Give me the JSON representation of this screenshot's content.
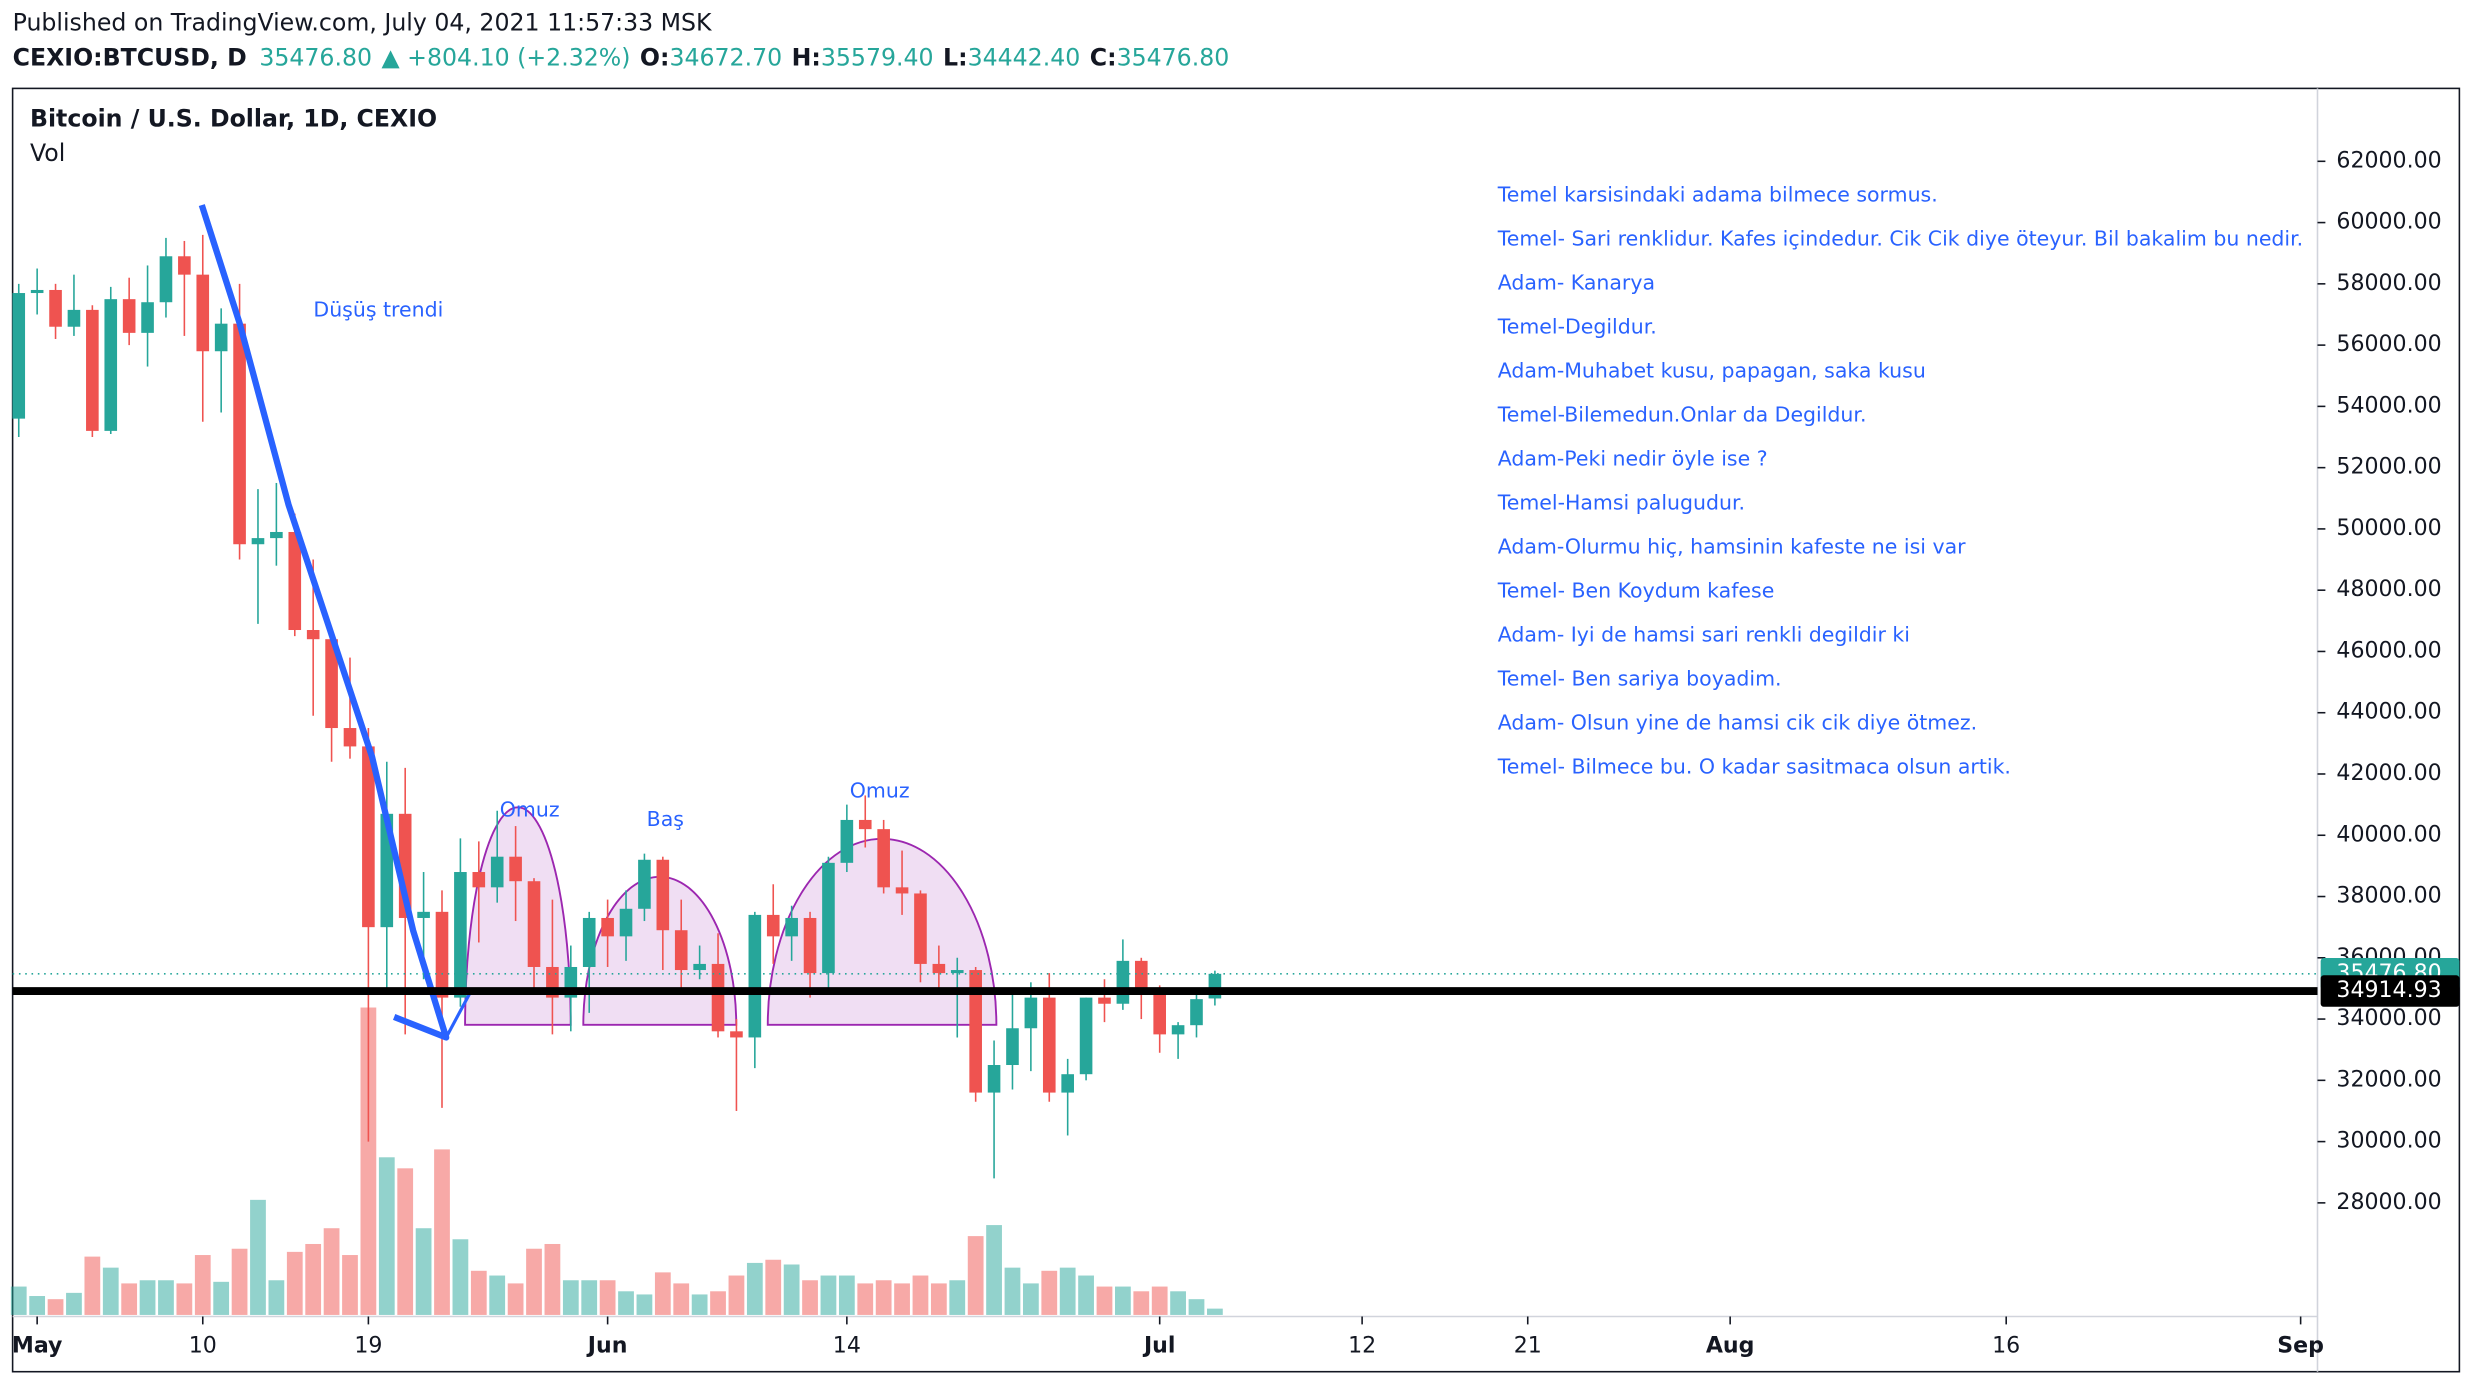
{
  "chart_data": {
    "type": "candlestick",
    "header": {
      "published": "Published on TradingView.com, July 04, 2021 11:57:33 MSK",
      "symbol": "CEXIO:BTCUSD, D",
      "last": "35476.80",
      "change": "▲ +804.10 (+2.32%)",
      "ohlc": [
        {
          "key": "O:",
          "value": "34672.70"
        },
        {
          "key": "H:",
          "value": "35579.40"
        },
        {
          "key": "L:",
          "value": "34442.40"
        },
        {
          "key": "C:",
          "value": "35476.80"
        }
      ]
    },
    "legend": {
      "title": "Bitcoin / U.S. Dollar, 1D, CEXIO",
      "volume": "Vol"
    },
    "up_color": "#26a69a",
    "down_color": "#ef5350",
    "x": [
      "2021-04-30",
      "2021-05-01",
      "2021-05-02",
      "2021-05-03",
      "2021-05-04",
      "2021-05-05",
      "2021-05-06",
      "2021-05-07",
      "2021-05-08",
      "2021-05-09",
      "2021-05-10",
      "2021-05-11",
      "2021-05-12",
      "2021-05-13",
      "2021-05-14",
      "2021-05-15",
      "2021-05-16",
      "2021-05-17",
      "2021-05-18",
      "2021-05-19",
      "2021-05-20",
      "2021-05-21",
      "2021-05-22",
      "2021-05-23",
      "2021-05-24",
      "2021-05-25",
      "2021-05-26",
      "2021-05-27",
      "2021-05-28",
      "2021-05-29",
      "2021-05-30",
      "2021-05-31",
      "2021-06-01",
      "2021-06-02",
      "2021-06-03",
      "2021-06-04",
      "2021-06-05",
      "2021-06-06",
      "2021-06-07",
      "2021-06-08",
      "2021-06-09",
      "2021-06-10",
      "2021-06-11",
      "2021-06-12",
      "2021-06-13",
      "2021-06-14",
      "2021-06-15",
      "2021-06-16",
      "2021-06-17",
      "2021-06-18",
      "2021-06-19",
      "2021-06-20",
      "2021-06-21",
      "2021-06-22",
      "2021-06-23",
      "2021-06-24",
      "2021-06-25",
      "2021-06-26",
      "2021-06-27",
      "2021-06-28",
      "2021-06-29",
      "2021-06-30",
      "2021-07-01",
      "2021-07-02",
      "2021-07-03",
      "2021-07-04"
    ],
    "open": [
      53600,
      57700,
      57800,
      56600,
      57150,
      53200,
      57500,
      56400,
      57400,
      58900,
      58300,
      55800,
      56700,
      49500,
      49700,
      49900,
      46700,
      46400,
      43500,
      42900,
      37000,
      40700,
      37300,
      37500,
      34700,
      38800,
      38300,
      39300,
      38500,
      35700,
      34700,
      35700,
      37300,
      36700,
      37600,
      39200,
      36900,
      35600,
      35800,
      33600,
      33400,
      37400,
      36700,
      37300,
      35500,
      39100,
      40500,
      40200,
      38300,
      38100,
      35800,
      35500,
      35600,
      31600,
      32500,
      33700,
      34700,
      31600,
      32200,
      34700,
      34500,
      35900,
      35000,
      33500,
      33800,
      34672.7
    ],
    "high": [
      58000,
      58500,
      58000,
      58300,
      57300,
      57900,
      58200,
      58600,
      59500,
      59400,
      59600,
      57200,
      58000,
      51300,
      51500,
      50500,
      49000,
      46600,
      45800,
      43500,
      42400,
      42200,
      38800,
      38200,
      39900,
      39800,
      40800,
      40300,
      38600,
      37900,
      36400,
      37500,
      37900,
      38200,
      39400,
      39300,
      37900,
      36400,
      36800,
      34000,
      37500,
      38400,
      37700,
      37500,
      39300,
      41000,
      41300,
      40500,
      39500,
      38200,
      36400,
      36000,
      35700,
      33300,
      34800,
      35200,
      35500,
      32700,
      34700,
      35300,
      36600,
      36000,
      35100,
      33900,
      34900,
      35579.4
    ],
    "low": [
      53000,
      57000,
      56200,
      56300,
      53000,
      53100,
      56000,
      55300,
      56900,
      56300,
      53500,
      53800,
      49000,
      46900,
      48800,
      46500,
      43900,
      42400,
      42500,
      30000,
      34800,
      33500,
      35300,
      31100,
      34400,
      36500,
      37800,
      37200,
      34800,
      33500,
      33600,
      34200,
      35700,
      35900,
      37200,
      35600,
      34900,
      35300,
      33400,
      31000,
      32400,
      35800,
      35900,
      34700,
      34800,
      38800,
      39600,
      38100,
      37400,
      35200,
      34800,
      33400,
      31300,
      28800,
      31700,
      32300,
      31300,
      30200,
      32000,
      33900,
      34300,
      34000,
      32900,
      32700,
      33400,
      34442.4
    ],
    "close": [
      57700,
      57800,
      56600,
      57150,
      53200,
      57500,
      56400,
      57400,
      58900,
      58300,
      55800,
      56700,
      49500,
      49700,
      49900,
      46700,
      46400,
      43500,
      42900,
      37000,
      40700,
      37300,
      37500,
      34700,
      38800,
      38300,
      39300,
      38500,
      35700,
      34700,
      35700,
      37300,
      36700,
      37600,
      39200,
      36900,
      35600,
      35800,
      33600,
      33400,
      37400,
      36700,
      37300,
      35500,
      39100,
      40500,
      40200,
      38300,
      38100,
      35800,
      35500,
      35600,
      31600,
      32500,
      33700,
      34700,
      31600,
      32200,
      34700,
      34500,
      35900,
      35000,
      33500,
      33800,
      34650,
      35476.8
    ],
    "volume": [
      18,
      12,
      10,
      14,
      37,
      30,
      20,
      22,
      22,
      20,
      38,
      21,
      42,
      73,
      22,
      40,
      45,
      55,
      38,
      195,
      100,
      93,
      55,
      105,
      48,
      28,
      25,
      20,
      42,
      45,
      22,
      22,
      22,
      15,
      13,
      27,
      20,
      13,
      15,
      25,
      33,
      35,
      32,
      22,
      25,
      25,
      20,
      22,
      20,
      25,
      20,
      22,
      50,
      57,
      30,
      20,
      28,
      30,
      25,
      18,
      18,
      15,
      18,
      15,
      10,
      4
    ],
    "xlim": [
      "2021-04-29T16:00Z",
      "2021-09-01T22:00Z"
    ],
    "xticks": [
      {
        "value": "2021-05-01",
        "label": "May"
      },
      {
        "value": "2021-05-10",
        "label": "10"
      },
      {
        "value": "2021-05-19",
        "label": "19"
      },
      {
        "value": "2021-06-01",
        "label": "Jun"
      },
      {
        "value": "2021-06-14",
        "label": "14"
      },
      {
        "value": "2021-07-01",
        "label": "Jul"
      },
      {
        "value": "2021-07-12",
        "label": "12"
      },
      {
        "value": "2021-07-21",
        "label": "21"
      },
      {
        "value": "2021-08-01",
        "label": "Aug"
      },
      {
        "value": "2021-08-16",
        "label": "16"
      },
      {
        "value": "2021-09-01",
        "label": "Sep"
      }
    ],
    "ylim": [
      24290,
      64380
    ],
    "yticks": [
      {
        "value": 28000,
        "label": "28000.00"
      },
      {
        "value": 30000,
        "label": "30000.00"
      },
      {
        "value": 32000,
        "label": "32000.00"
      },
      {
        "value": 34000,
        "label": "34000.00"
      },
      {
        "value": 36000,
        "label": "36000.00"
      },
      {
        "value": 38000,
        "label": "38000.00"
      },
      {
        "value": 40000,
        "label": "40000.00"
      },
      {
        "value": 42000,
        "label": "42000.00"
      },
      {
        "value": 44000,
        "label": "44000.00"
      },
      {
        "value": 46000,
        "label": "46000.00"
      },
      {
        "value": 48000,
        "label": "48000.00"
      },
      {
        "value": 50000,
        "label": "50000.00"
      },
      {
        "value": 52000,
        "label": "52000.00"
      },
      {
        "value": 54000,
        "label": "54000.00"
      },
      {
        "value": 56000,
        "label": "56000.00"
      },
      {
        "value": 58000,
        "label": "58000.00"
      },
      {
        "value": 60000,
        "label": "60000.00"
      },
      {
        "value": 62000,
        "label": "62000.00"
      }
    ],
    "price_lines": [
      {
        "value": 35476.8,
        "label": "35476.80",
        "color": "#26a69a",
        "style": "dotted"
      },
      {
        "value": 34914.93,
        "label": "34914.93",
        "color": "#000000",
        "style": "solid"
      }
    ],
    "pattern_labels": [
      "Düşüş trendi",
      "Omuz",
      "Baş",
      "Omuz"
    ],
    "annotations": [
      "Temel karsisindaki adama bilmece sormus.",
      "Temel- Sari renklidur. Kafes içindedur. Cik Cik diye öteyur. Bil bakalim bu nedir.",
      "Adam- Kanarya",
      "Temel-Degildur.",
      "Adam-Muhabet kusu, papagan, saka kusu",
      "Temel-Bilemedun.Onlar da Degildur.",
      "Adam-Peki nedir öyle ise ?",
      "Temel-Hamsi palugudur.",
      "Adam-Olurmu hiç, hamsinin kafeste ne isi var",
      "Temel- Ben Koydum kafese",
      "Adam- Iyi de hamsi sari renkli degildir ki",
      "Temel- Ben sariya boyadim.",
      "Adam- Olsun yine de hamsi cik cik diye ötmez.",
      "Temel- Bilmece bu. O kadar sasitmaca olsun artik."
    ]
  }
}
